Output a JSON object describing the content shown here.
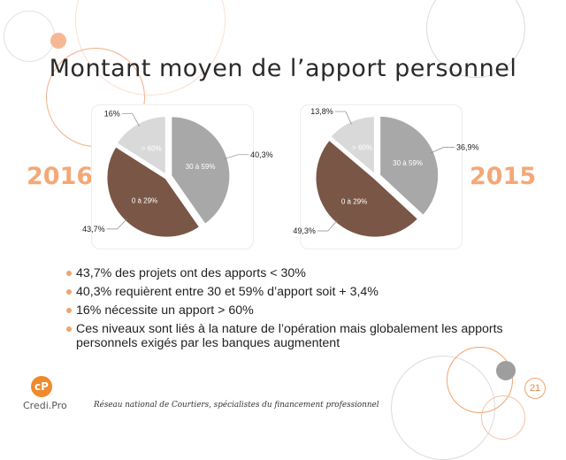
{
  "title": "Montant moyen de l’apport personnel",
  "colors": {
    "accent": "#f4a877",
    "slice_high": "#d9d9d9",
    "slice_mid": "#a8a8a8",
    "slice_low": "#7a5646"
  },
  "chart_data": [
    {
      "type": "pie",
      "title": "2016",
      "slices": [
        {
          "label": "30 à 59%",
          "value": 40.3,
          "display": "40,3%",
          "color": "#a8a8a8"
        },
        {
          "label": "0 à 29%",
          "value": 43.7,
          "display": "43,7%",
          "color": "#7a5646"
        },
        {
          "label": "> 60%",
          "value": 16.0,
          "display": "16%",
          "color": "#d9d9d9"
        }
      ]
    },
    {
      "type": "pie",
      "title": "2015",
      "slices": [
        {
          "label": "30 à 59%",
          "value": 36.9,
          "display": "36,9%",
          "color": "#a8a8a8"
        },
        {
          "label": "0 à 29%",
          "value": 49.3,
          "display": "49,3%",
          "color": "#7a5646"
        },
        {
          "label": "> 60%",
          "value": 13.8,
          "display": "13,8%",
          "color": "#d9d9d9"
        }
      ]
    }
  ],
  "bullets": [
    "43,7% des projets ont des apports < 30%",
    "40,3% requièrent entre 30 et 59% d’apport soit + 3,4%",
    "16% nécessite un apport > 60%",
    "Ces niveaux sont liés à la nature de l’opération mais globalement les apports personnels exigés par les banques augmentent"
  ],
  "logo": {
    "mark": "cP",
    "brand": "Credi.Pro"
  },
  "footer": "Réseau national de Courtiers, spécialistes du financement professionnel",
  "page_number": "21"
}
